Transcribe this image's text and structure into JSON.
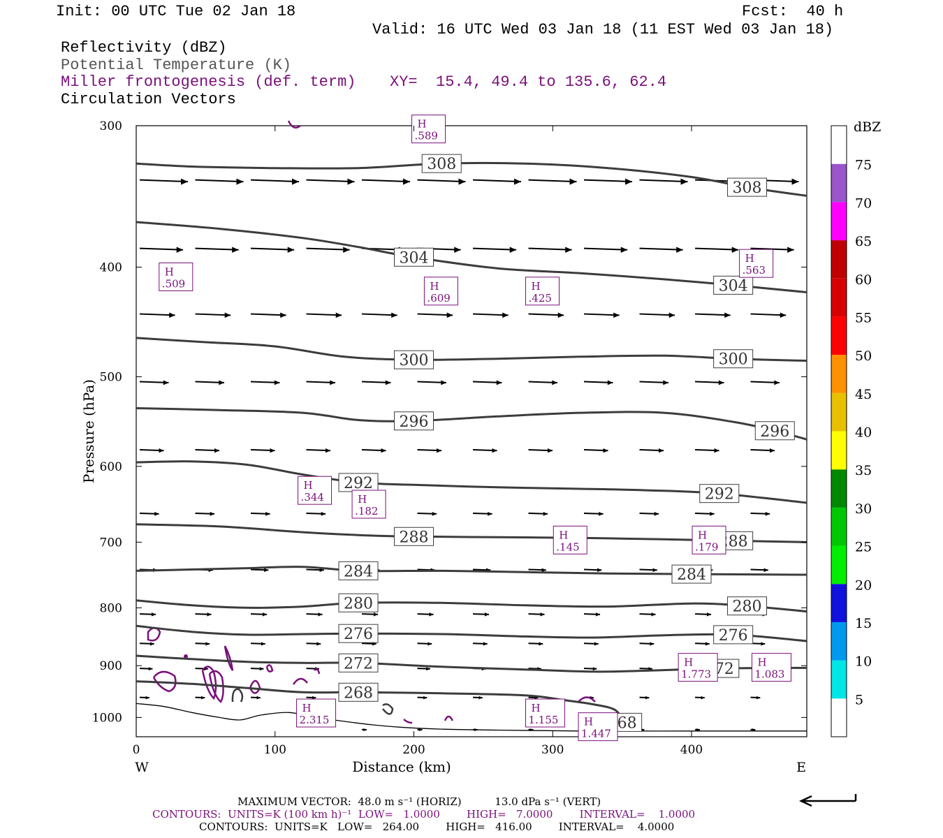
{
  "header": {
    "init": "Init: 00 UTC Tue 02 Jan 18",
    "fcst": "Fcst:  40 h",
    "valid": "Valid: 16 UTC Wed 03 Jan 18 (11 EST Wed 03 Jan 18)",
    "field1": "Reflectivity (dBZ)",
    "field2": "Potential Temperature (K)",
    "field3": "Miller frontogenesis (def. term)",
    "xy": "XY=  15.4, 49.4 to 135.6, 62.4",
    "field4": "Circulation Vectors"
  },
  "colors": {
    "theta": "#3c3c3c",
    "fronto": "#7a0f7a",
    "vectors": "#000000"
  },
  "chart_data": {
    "type": "cross-section",
    "xlabel": "Distance (km)",
    "ylabel": "Pressure (hPa)",
    "xlim": [
      0,
      483
    ],
    "ylim": [
      1040,
      300
    ],
    "y_scale": "log",
    "x_ticks": [
      0,
      100,
      200,
      300,
      400
    ],
    "y_ticks": [
      300,
      400,
      500,
      600,
      700,
      800,
      900,
      1000
    ],
    "west_label": "W",
    "east_label": "E",
    "theta_contours": [
      {
        "value": 308,
        "points": [
          [
            0,
            324
          ],
          [
            40,
            326
          ],
          [
            100,
            327
          ],
          [
            160,
            327
          ],
          [
            220,
            324
          ],
          [
            280,
            324
          ],
          [
            340,
            327
          ],
          [
            400,
            333
          ],
          [
            440,
            340
          ],
          [
            483,
            346
          ]
        ]
      },
      {
        "value": 304,
        "points": [
          [
            0,
            365
          ],
          [
            60,
            370
          ],
          [
            120,
            377
          ],
          [
            160,
            384
          ],
          [
            200,
            392
          ],
          [
            260,
            401
          ],
          [
            320,
            405
          ],
          [
            380,
            410
          ],
          [
            430,
            415
          ],
          [
            483,
            421
          ]
        ]
      },
      {
        "value": 300,
        "points": [
          [
            0,
            462
          ],
          [
            50,
            466
          ],
          [
            100,
            470
          ],
          [
            150,
            480
          ],
          [
            200,
            483
          ],
          [
            260,
            482
          ],
          [
            320,
            480
          ],
          [
            380,
            479
          ],
          [
            430,
            482
          ],
          [
            483,
            484
          ]
        ]
      },
      {
        "value": 296,
        "points": [
          [
            0,
            533
          ],
          [
            60,
            535
          ],
          [
            120,
            538
          ],
          [
            160,
            546
          ],
          [
            200,
            547
          ],
          [
            260,
            542
          ],
          [
            320,
            538
          ],
          [
            380,
            538
          ],
          [
            430,
            548
          ],
          [
            460,
            558
          ],
          [
            483,
            568
          ]
        ]
      },
      {
        "value": 292,
        "points": [
          [
            0,
            595
          ],
          [
            40,
            594
          ],
          [
            80,
            598
          ],
          [
            120,
            610
          ],
          [
            160,
            620
          ],
          [
            200,
            623
          ],
          [
            260,
            626
          ],
          [
            320,
            628
          ],
          [
            370,
            630
          ],
          [
            420,
            634
          ],
          [
            483,
            646
          ]
        ]
      },
      {
        "value": 288,
        "points": [
          [
            0,
            675
          ],
          [
            60,
            678
          ],
          [
            120,
            686
          ],
          [
            160,
            690
          ],
          [
            200,
            692
          ],
          [
            260,
            693
          ],
          [
            320,
            694
          ],
          [
            380,
            696
          ],
          [
            430,
            698
          ],
          [
            483,
            700
          ]
        ]
      },
      {
        "value": 284,
        "points": [
          [
            0,
            742
          ],
          [
            40,
            740
          ],
          [
            80,
            738
          ],
          [
            120,
            736
          ],
          [
            160,
            742
          ],
          [
            220,
            742
          ],
          [
            280,
            744
          ],
          [
            340,
            746
          ],
          [
            400,
            747
          ],
          [
            483,
            748
          ]
        ]
      },
      {
        "value": 280,
        "points": [
          [
            0,
            788
          ],
          [
            40,
            796
          ],
          [
            80,
            800
          ],
          [
            120,
            798
          ],
          [
            160,
            792
          ],
          [
            220,
            792
          ],
          [
            280,
            796
          ],
          [
            340,
            798
          ],
          [
            400,
            793
          ],
          [
            440,
            797
          ],
          [
            483,
            806
          ]
        ]
      },
      {
        "value": 276,
        "points": [
          [
            0,
            830
          ],
          [
            40,
            840
          ],
          [
            80,
            845
          ],
          [
            120,
            844
          ],
          [
            160,
            843
          ],
          [
            220,
            844
          ],
          [
            280,
            848
          ],
          [
            330,
            850
          ],
          [
            380,
            846
          ],
          [
            430,
            845
          ],
          [
            483,
            856
          ]
        ]
      },
      {
        "value": 272,
        "points": [
          [
            0,
            882
          ],
          [
            40,
            888
          ],
          [
            80,
            893
          ],
          [
            120,
            895
          ],
          [
            160,
            895
          ],
          [
            220,
            902
          ],
          [
            280,
            907
          ],
          [
            330,
            911
          ],
          [
            370,
            909
          ],
          [
            420,
            905
          ],
          [
            483,
            904
          ]
        ]
      },
      {
        "value": 268,
        "points": [
          [
            0,
            929
          ],
          [
            40,
            934
          ],
          [
            80,
            942
          ],
          [
            120,
            950
          ],
          [
            160,
            950
          ],
          [
            220,
            952
          ],
          [
            280,
            956
          ],
          [
            310,
            966
          ],
          [
            330,
            974
          ],
          [
            345,
            985
          ],
          [
            350,
            1010
          ],
          [
            345,
            1030
          ]
        ]
      }
    ],
    "frontogenesis_maxima": [
      {
        "label": "H",
        "value": ".589",
        "x": 198,
        "p": 302
      },
      {
        "label": "H",
        "value": ".509",
        "x": 16,
        "p": 408
      },
      {
        "label": "H",
        "value": ".609",
        "x": 207,
        "p": 420
      },
      {
        "label": "H",
        "value": ".425",
        "x": 280,
        "p": 420
      },
      {
        "label": "H",
        "value": ".563",
        "x": 434,
        "p": 397
      },
      {
        "label": "H",
        "value": ".344",
        "x": 116,
        "p": 630
      },
      {
        "label": "H",
        "value": ".182",
        "x": 155,
        "p": 648
      },
      {
        "label": "H",
        "value": ".145",
        "x": 300,
        "p": 697
      },
      {
        "label": "H",
        "value": ".179",
        "x": 400,
        "p": 697
      },
      {
        "label": "H",
        "value": "1.773",
        "x": 392,
        "p": 903
      },
      {
        "label": "H",
        "value": "1.083",
        "x": 445,
        "p": 903
      },
      {
        "label": "H",
        "value": "2.315",
        "x": 117,
        "p": 991
      },
      {
        "label": "H",
        "value": "1.155",
        "x": 282,
        "p": 991
      },
      {
        "label": "H",
        "value": "1.447",
        "x": 320,
        "p": 1019
      }
    ],
    "colorbar": {
      "title": "dBZ",
      "ticks": [
        "5",
        "10",
        "15",
        "20",
        "25",
        "30",
        "35",
        "40",
        "45",
        "50",
        "55",
        "60",
        "65",
        "70",
        "75"
      ],
      "colors": [
        "#ffffff",
        "#00e5e5",
        "#0099ee",
        "#1111dd",
        "#00ee00",
        "#00c800",
        "#008800",
        "#ffff00",
        "#e7c000",
        "#ff9000",
        "#ff0000",
        "#d60000",
        "#c00000",
        "#ff00ff",
        "#9955c9",
        "#ffffff"
      ]
    }
  },
  "footer": {
    "vector_line": "MAXIMUM VECTOR:  48.0 m s⁻¹ (HORIZ)          13.0 dPa s⁻¹ (VERT)",
    "contours1": "CONTOURS:  UNITS=K (100 km h)⁻¹  LOW=   1.0000        HIGH=   7.0000        INTERVAL=    1.0000",
    "contours2": "CONTOURS:  UNITS=K   LOW=   264.00        HIGH=   416.00        INTERVAL=    4.0000"
  }
}
